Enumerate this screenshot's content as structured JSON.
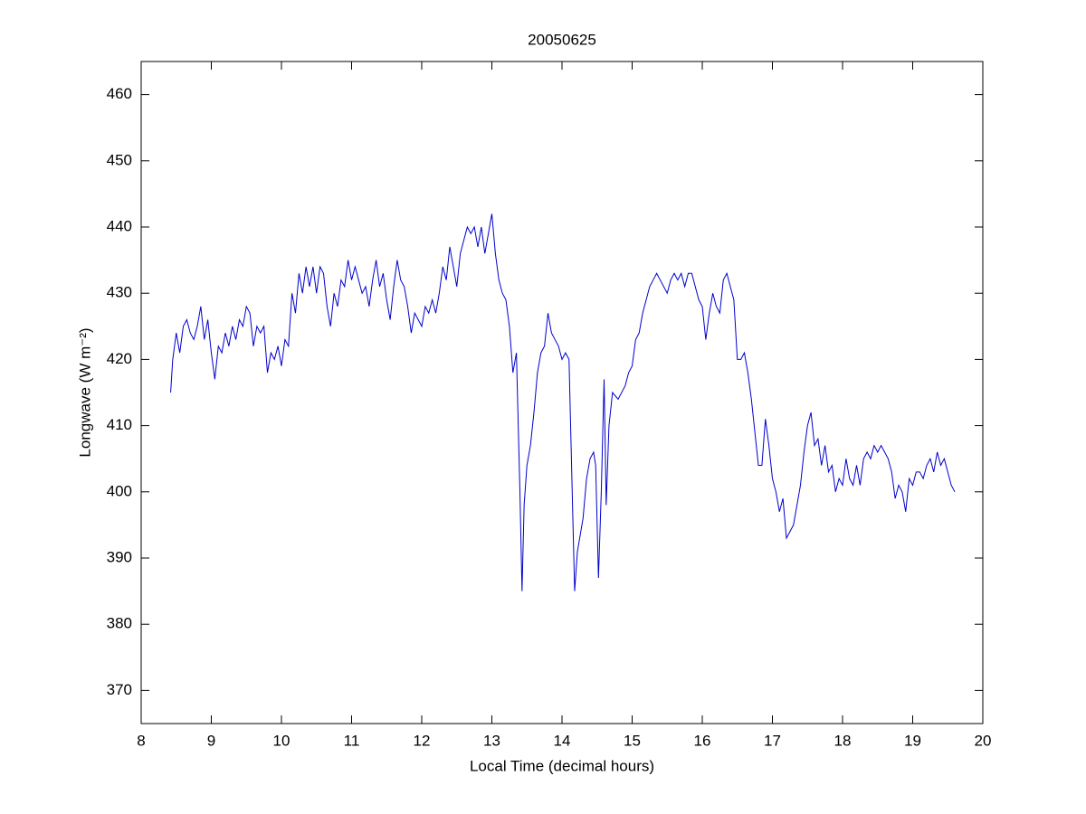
{
  "chart_data": {
    "type": "line",
    "title": "20050625",
    "xlabel": "Local Time (decimal hours)",
    "ylabel": "Longwave (W m⁻²)",
    "xlim": [
      8,
      20
    ],
    "ylim": [
      365,
      465
    ],
    "xticks": [
      8,
      9,
      10,
      11,
      12,
      13,
      14,
      15,
      16,
      17,
      18,
      19,
      20
    ],
    "yticks": [
      370,
      380,
      390,
      400,
      410,
      420,
      430,
      440,
      450,
      460
    ],
    "series": [
      {
        "color": "#0000cc",
        "x": [
          8.42,
          8.45,
          8.5,
          8.55,
          8.6,
          8.65,
          8.7,
          8.75,
          8.8,
          8.85,
          8.9,
          8.95,
          9.0,
          9.05,
          9.1,
          9.15,
          9.2,
          9.25,
          9.3,
          9.35,
          9.4,
          9.45,
          9.5,
          9.55,
          9.6,
          9.65,
          9.7,
          9.75,
          9.8,
          9.85,
          9.9,
          9.95,
          10.0,
          10.05,
          10.1,
          10.15,
          10.2,
          10.25,
          10.3,
          10.35,
          10.4,
          10.45,
          10.5,
          10.55,
          10.6,
          10.65,
          10.7,
          10.75,
          10.8,
          10.85,
          10.9,
          10.95,
          11.0,
          11.05,
          11.1,
          11.15,
          11.2,
          11.25,
          11.3,
          11.35,
          11.4,
          11.45,
          11.5,
          11.55,
          11.6,
          11.65,
          11.7,
          11.75,
          11.8,
          11.85,
          11.9,
          11.95,
          12.0,
          12.05,
          12.1,
          12.15,
          12.2,
          12.25,
          12.3,
          12.35,
          12.4,
          12.45,
          12.5,
          12.55,
          12.6,
          12.65,
          12.7,
          12.75,
          12.8,
          12.85,
          12.9,
          12.95,
          13.0,
          13.05,
          13.1,
          13.15,
          13.2,
          13.25,
          13.3,
          13.35,
          13.4,
          13.43,
          13.46,
          13.5,
          13.55,
          13.6,
          13.65,
          13.7,
          13.75,
          13.8,
          13.85,
          13.9,
          13.95,
          14.0,
          14.05,
          14.1,
          14.15,
          14.18,
          14.22,
          14.3,
          14.35,
          14.4,
          14.45,
          14.48,
          14.52,
          14.56,
          14.6,
          14.63,
          14.67,
          14.72,
          14.8,
          14.9,
          14.95,
          15.0,
          15.05,
          15.1,
          15.15,
          15.2,
          15.25,
          15.3,
          15.35,
          15.4,
          15.45,
          15.5,
          15.55,
          15.6,
          15.65,
          15.7,
          15.75,
          15.8,
          15.85,
          15.9,
          15.95,
          16.0,
          16.05,
          16.1,
          16.15,
          16.2,
          16.25,
          16.3,
          16.35,
          16.4,
          16.45,
          16.5,
          16.55,
          16.6,
          16.65,
          16.7,
          16.75,
          16.8,
          16.85,
          16.9,
          16.95,
          17.0,
          17.05,
          17.1,
          17.15,
          17.2,
          17.25,
          17.3,
          17.35,
          17.4,
          17.45,
          17.5,
          17.55,
          17.6,
          17.65,
          17.7,
          17.75,
          17.8,
          17.85,
          17.9,
          17.95,
          18.0,
          18.05,
          18.1,
          18.15,
          18.2,
          18.25,
          18.3,
          18.35,
          18.4,
          18.45,
          18.5,
          18.55,
          18.6,
          18.65,
          18.7,
          18.75,
          18.8,
          18.85,
          18.9,
          18.95,
          19.0,
          19.05,
          19.1,
          19.15,
          19.2,
          19.25,
          19.3,
          19.35,
          19.4,
          19.45,
          19.5,
          19.55,
          19.6
        ],
        "values": [
          415,
          420,
          424,
          421,
          425,
          426,
          424,
          423,
          425,
          428,
          423,
          426,
          421,
          417,
          422,
          421,
          424,
          422,
          425,
          423,
          426,
          425,
          428,
          427,
          422,
          425,
          424,
          425,
          418,
          421,
          420,
          422,
          419,
          423,
          422,
          430,
          427,
          433,
          430,
          434,
          431,
          434,
          430,
          434,
          433,
          428,
          425,
          430,
          428,
          432,
          431,
          435,
          432,
          434,
          432,
          430,
          431,
          428,
          432,
          435,
          431,
          433,
          429,
          426,
          431,
          435,
          432,
          431,
          428,
          424,
          427,
          426,
          425,
          428,
          427,
          429,
          427,
          430,
          434,
          432,
          437,
          434,
          431,
          436,
          438,
          440,
          439,
          440,
          437,
          440,
          436,
          439,
          442,
          436,
          432,
          430,
          429,
          425,
          418,
          421,
          400,
          385,
          398,
          404,
          407,
          412,
          418,
          421,
          422,
          427,
          424,
          423,
          422,
          420,
          421,
          420,
          398,
          385,
          391,
          396,
          402,
          405,
          406,
          404,
          387,
          400,
          417,
          398,
          410,
          415,
          414,
          416,
          418,
          419,
          423,
          424,
          427,
          429,
          431,
          432,
          433,
          432,
          431,
          430,
          432,
          433,
          432,
          433,
          431,
          433,
          433,
          431,
          429,
          428,
          423,
          427,
          430,
          428,
          427,
          432,
          433,
          431,
          429,
          420,
          420,
          421,
          418,
          414,
          409,
          404,
          404,
          411,
          407,
          402,
          400,
          397,
          399,
          393,
          394,
          395,
          398,
          401,
          406,
          410,
          412,
          407,
          408,
          404,
          407,
          403,
          404,
          400,
          402,
          401,
          405,
          402,
          401,
          404,
          401,
          405,
          406,
          405,
          407,
          406,
          407,
          406,
          405,
          403,
          399,
          401,
          400,
          397,
          402,
          401,
          403,
          403,
          402,
          404,
          405,
          403,
          406,
          404,
          405,
          403,
          401,
          400
        ]
      }
    ]
  }
}
